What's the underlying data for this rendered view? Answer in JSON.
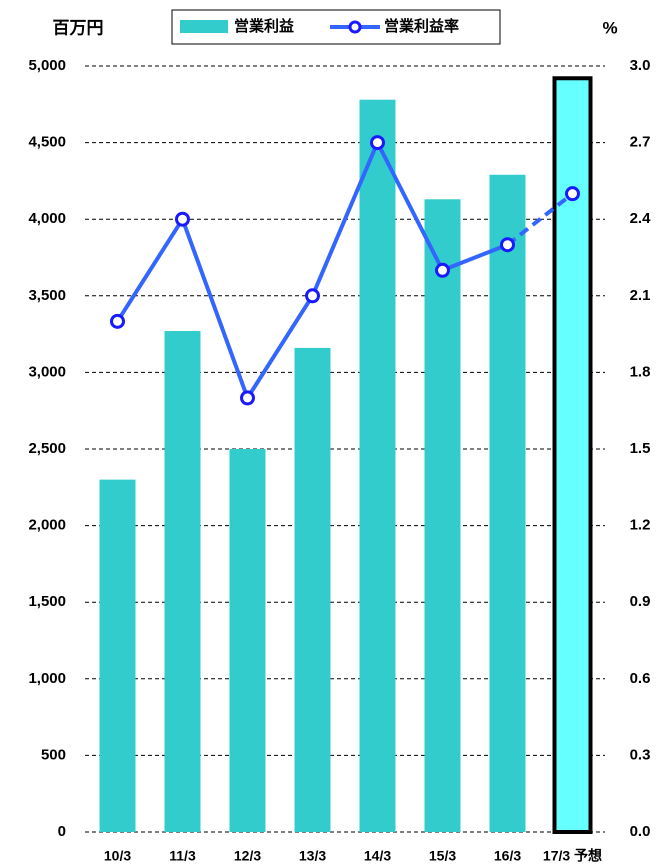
{
  "chart_data": {
    "type": "bar_line",
    "y_unit": "百万円",
    "y2_unit": "%",
    "categories": [
      "10/3",
      "11/3",
      "12/3",
      "13/3",
      "14/3",
      "15/3",
      "16/3",
      "17/3 予想"
    ],
    "series": [
      {
        "name": "営業利益",
        "type": "bar",
        "color": "#33cccc",
        "forecast_color": "#66ffff",
        "values": [
          2300,
          3270,
          2500,
          3160,
          4780,
          4130,
          4290,
          4920
        ]
      },
      {
        "name": "営業利益率",
        "type": "line",
        "axis": "y2",
        "color": "#3366ff",
        "values": [
          2.0,
          2.4,
          1.7,
          2.1,
          2.7,
          2.2,
          2.3,
          2.5
        ]
      }
    ],
    "forecast_index": 7,
    "ylim": [
      0,
      5000
    ],
    "yticks": [
      0,
      500,
      {
        "value": 1000,
        "label": "1,000"
      },
      {
        "value": 1500,
        "label": "1,500"
      },
      {
        "value": 2000,
        "label": "2,000"
      },
      {
        "value": 2500,
        "label": "2,500"
      },
      {
        "value": 3000,
        "label": "3,000"
      },
      {
        "value": 3500,
        "label": "3,500"
      },
      {
        "value": 4000,
        "label": "4,000"
      },
      {
        "value": 4500,
        "label": "4,500"
      },
      {
        "value": 5000,
        "label": "5,000"
      }
    ],
    "y2lim": [
      0,
      3
    ],
    "y2ticks": [
      {
        "value": 0,
        "label": "0.0"
      },
      0.3,
      0.6,
      0.9,
      1.2,
      1.5,
      1.8,
      2.1,
      2.4,
      2.7,
      {
        "value": 3,
        "label": "3.0"
      }
    ],
    "grid": true
  }
}
